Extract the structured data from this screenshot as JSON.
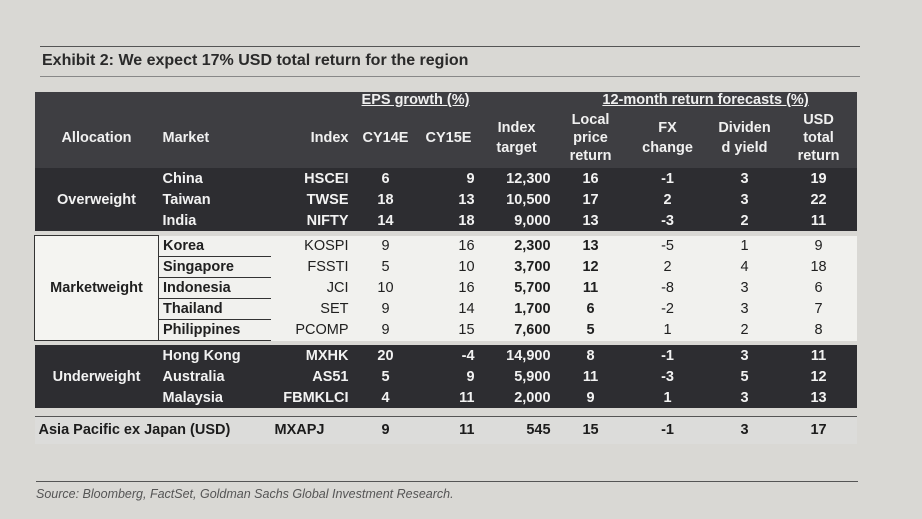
{
  "title": "Exhibit 2: We expect 17% USD total return for the region",
  "headers": {
    "eps_group": "EPS growth (%)",
    "return_group": "12-month return forecasts (%)",
    "allocation": "Allocation",
    "market": "Market",
    "index": "Index",
    "cy14e": "CY14E",
    "cy15e": "CY15E",
    "index_target_1": "Index",
    "index_target_2": "target",
    "local_1": "Local",
    "local_2": "price",
    "local_3": "return",
    "fx_1": "FX",
    "fx_2": "change",
    "div_1": "Dividen",
    "div_2": "d yield",
    "usd_1": "USD",
    "usd_2": "total",
    "usd_3": "return"
  },
  "groups": {
    "overweight": "Overweight",
    "marketweight": "Marketweight",
    "underweight": "Underweight"
  },
  "rows": [
    {
      "market": "China",
      "index": "HSCEI",
      "cy14e": "6",
      "cy15e": "9",
      "target": "12,300",
      "local": "16",
      "fx": "-1",
      "div": "3",
      "usd": "19"
    },
    {
      "market": "Taiwan",
      "index": "TWSE",
      "cy14e": "18",
      "cy15e": "13",
      "target": "10,500",
      "local": "17",
      "fx": "2",
      "div": "3",
      "usd": "22"
    },
    {
      "market": "India",
      "index": "NIFTY",
      "cy14e": "14",
      "cy15e": "18",
      "target": "9,000",
      "local": "13",
      "fx": "-3",
      "div": "2",
      "usd": "11"
    },
    {
      "market": "Korea",
      "index": "KOSPI",
      "cy14e": "9",
      "cy15e": "16",
      "target": "2,300",
      "local": "13",
      "fx": "-5",
      "div": "1",
      "usd": "9"
    },
    {
      "market": "Singapore",
      "index": "FSSTI",
      "cy14e": "5",
      "cy15e": "10",
      "target": "3,700",
      "local": "12",
      "fx": "2",
      "div": "4",
      "usd": "18"
    },
    {
      "market": "Indonesia",
      "index": "JCI",
      "cy14e": "10",
      "cy15e": "16",
      "target": "5,700",
      "local": "11",
      "fx": "-8",
      "div": "3",
      "usd": "6"
    },
    {
      "market": "Thailand",
      "index": "SET",
      "cy14e": "9",
      "cy15e": "14",
      "target": "1,700",
      "local": "6",
      "fx": "-2",
      "div": "3",
      "usd": "7"
    },
    {
      "market": "Philippines",
      "index": "PCOMP",
      "cy14e": "9",
      "cy15e": "15",
      "target": "7,600",
      "local": "5",
      "fx": "1",
      "div": "2",
      "usd": "8"
    },
    {
      "market": "Hong Kong",
      "index": "MXHK",
      "cy14e": "20",
      "cy15e": "-4",
      "target": "14,900",
      "local": "8",
      "fx": "-1",
      "div": "3",
      "usd": "11"
    },
    {
      "market": "Australia",
      "index": "AS51",
      "cy14e": "5",
      "cy15e": "9",
      "target": "5,900",
      "local": "11",
      "fx": "-3",
      "div": "5",
      "usd": "12"
    },
    {
      "market": "Malaysia",
      "index": "FBMKLCI",
      "cy14e": "4",
      "cy15e": "11",
      "target": "2,000",
      "local": "9",
      "fx": "1",
      "div": "3",
      "usd": "13"
    }
  ],
  "total": {
    "market": "Asia Pacific ex Japan (USD)",
    "index": "MXAPJ",
    "cy14e": "9",
    "cy15e": "11",
    "target": "545",
    "local": "15",
    "fx": "-1",
    "div": "3",
    "usd": "17"
  },
  "source": "Source: Bloomberg, FactSet, Goldman Sachs Global Investment Research."
}
